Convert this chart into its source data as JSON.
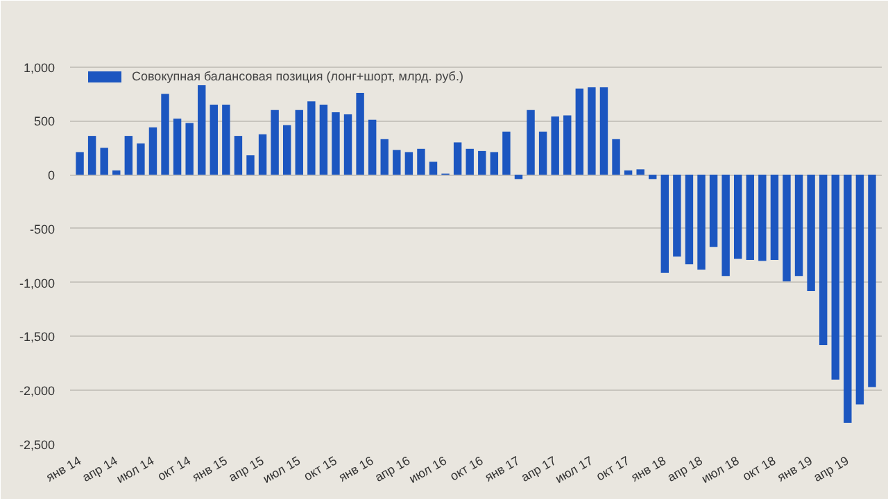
{
  "chart_data": {
    "type": "bar",
    "categories": [
      "янв 14",
      null,
      null,
      "апр 14",
      null,
      null,
      "июл 14",
      null,
      null,
      "окт 14",
      null,
      null,
      "янв 15",
      null,
      null,
      "апр 15",
      null,
      null,
      "июл 15",
      null,
      null,
      "окт 15",
      null,
      null,
      "янв 16",
      null,
      null,
      "апр 16",
      null,
      null,
      "июл 16",
      null,
      null,
      "окт 16",
      null,
      null,
      "янв 17",
      null,
      null,
      "апр 17",
      null,
      null,
      "июл 17",
      null,
      null,
      "окт 17",
      null,
      null,
      "янв 18",
      null,
      null,
      "апр 18",
      null,
      null,
      "июл 18",
      null,
      null,
      "окт 18",
      null,
      null,
      "янв 19",
      null,
      null,
      "апр 19",
      null,
      null
    ],
    "series": [
      {
        "name": "Совокупная балансовая позиция (лонг+шорт, млрд. руб.)",
        "color": "#1c56c0",
        "values": [
          210,
          360,
          250,
          40,
          360,
          290,
          440,
          750,
          520,
          480,
          830,
          650,
          650,
          360,
          180,
          375,
          600,
          460,
          600,
          680,
          650,
          580,
          560,
          760,
          510,
          330,
          230,
          210,
          240,
          120,
          10,
          300,
          240,
          220,
          210,
          400,
          -40,
          600,
          400,
          540,
          550,
          800,
          810,
          810,
          330,
          40,
          50,
          -40,
          -910,
          -760,
          -830,
          -880,
          -670,
          -940,
          -780,
          -790,
          -800,
          -790,
          -990,
          -940,
          -1080,
          -1580,
          -1900,
          -2300,
          -2130,
          -1970
        ]
      }
    ],
    "ylim": [
      -2500,
      1100
    ],
    "yticks": [
      {
        "value": 1000,
        "label": "1,000"
      },
      500,
      0,
      -500,
      {
        "value": -1000,
        "label": "-1,000"
      },
      {
        "value": -1500,
        "label": "-1,500"
      },
      {
        "value": -2000,
        "label": "-2,000"
      },
      {
        "value": -2500,
        "label": "-2,500"
      }
    ],
    "grid": "y",
    "legend": "top left"
  }
}
